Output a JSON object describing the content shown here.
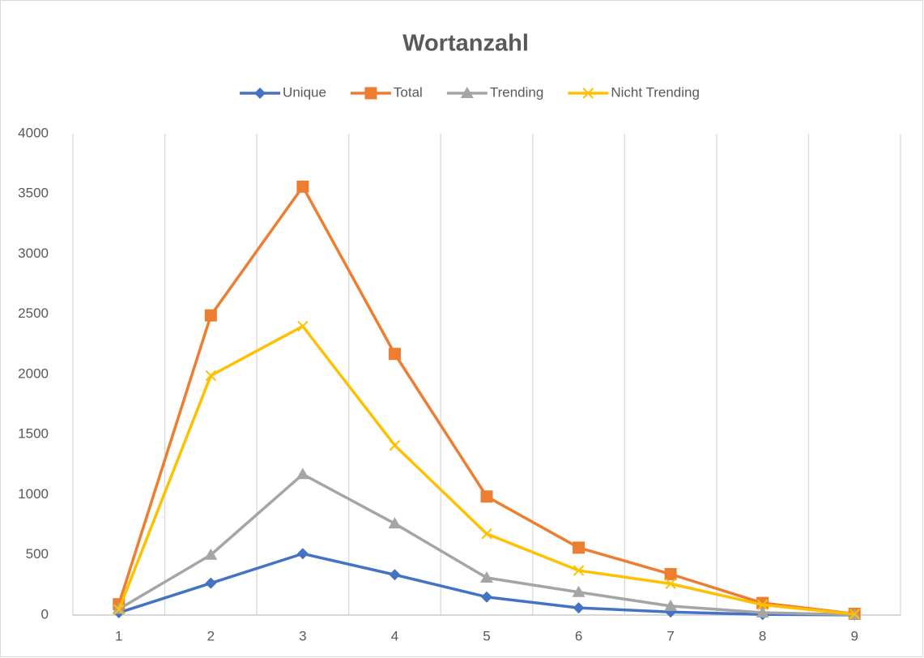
{
  "chart_data": {
    "type": "line",
    "title": "Wortanzahl",
    "categories": [
      "1",
      "2",
      "3",
      "4",
      "5",
      "6",
      "7",
      "8",
      "9"
    ],
    "series": [
      {
        "name": "Unique",
        "color": "#4472c4",
        "marker": "diamond",
        "values": [
          20,
          265,
          510,
          335,
          150,
          60,
          25,
          5,
          1
        ]
      },
      {
        "name": "Total",
        "color": "#ed7d31",
        "marker": "square",
        "values": [
          90,
          2490,
          3560,
          2170,
          985,
          560,
          340,
          100,
          10
        ]
      },
      {
        "name": "Trending",
        "color": "#a5a5a5",
        "marker": "triangle",
        "values": [
          50,
          500,
          1170,
          760,
          310,
          190,
          75,
          20,
          3
        ]
      },
      {
        "name": "Nicht Trending",
        "color": "#ffc000",
        "marker": "x",
        "values": [
          45,
          1990,
          2400,
          1410,
          675,
          370,
          260,
          85,
          8
        ]
      }
    ],
    "ylim": [
      0,
      4000
    ],
    "yticks": [
      0,
      500,
      1000,
      1500,
      2000,
      2500,
      3000,
      3500,
      4000
    ],
    "grid": "x",
    "legend": "top"
  }
}
